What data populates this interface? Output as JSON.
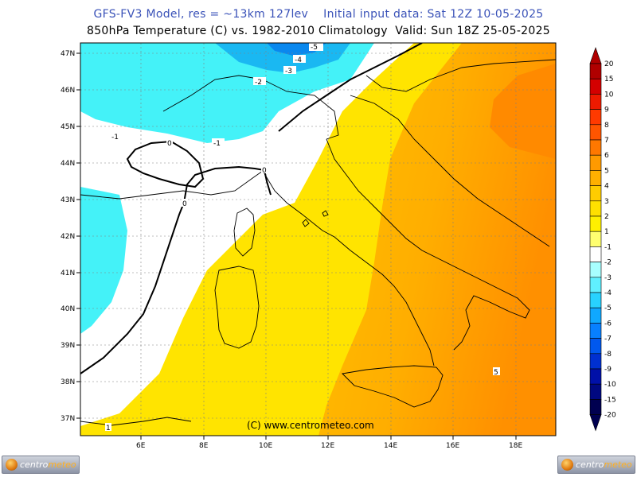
{
  "header": {
    "line1": "GFS-FV3 Model, res = ~13km 127lev    Initial input data: Sat 12Z 10-05-2025",
    "line2": "850hPa Temperature (C) vs. 1982-2010 Climatology  Valid: Sun 18Z 25-05-2025"
  },
  "map": {
    "lat_labels": [
      "47N",
      "46N",
      "45N",
      "44N",
      "43N",
      "42N",
      "41N",
      "40N",
      "39N",
      "38N",
      "37N"
    ],
    "lon_labels": [
      "6E",
      "8E",
      "10E",
      "12E",
      "14E",
      "16E",
      "18E"
    ],
    "copyright": "(C) www.centrometeo.com",
    "isoline_labels": [
      "-5",
      "-4",
      "-3",
      "-2",
      "-1",
      "-1",
      "0",
      "0",
      "0",
      "5",
      "1"
    ]
  },
  "colorbar": {
    "labels": [
      "20",
      "15",
      "10",
      "9",
      "8",
      "7",
      "6",
      "5",
      "4",
      "3",
      "2",
      "1",
      "-1",
      "-2",
      "-3",
      "-4",
      "-5",
      "-6",
      "-7",
      "-8",
      "-9",
      "-10",
      "-15",
      "-20"
    ],
    "colors": [
      "#b00000",
      "#d40000",
      "#ee1a00",
      "#ff3a00",
      "#ff5500",
      "#ff7800",
      "#ff9a00",
      "#ffb000",
      "#ffcc00",
      "#ffe000",
      "#fff000",
      "#ffff70",
      "#ffffff",
      "#a8ffff",
      "#60f0ff",
      "#28d2ff",
      "#10a8ff",
      "#0880ff",
      "#0058ee",
      "#0030d0",
      "#0010a8",
      "#000880",
      "#000050"
    ]
  },
  "logos": {
    "left": {
      "part1": "centro",
      "part2": "meteo"
    },
    "right": {
      "part1": "centro",
      "part2": "meteo"
    }
  }
}
